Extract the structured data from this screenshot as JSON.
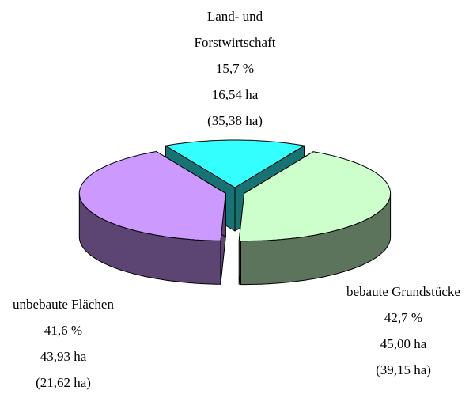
{
  "chart_data": {
    "type": "pie",
    "categories": [
      "Land- und Forstwirtschaft",
      "bebaute Grundstücke",
      "unbebaute Flächen"
    ],
    "values": [
      15.7,
      42.7,
      41.6
    ],
    "value_labels": [
      "15,7 %",
      "42,7 %",
      "41,6 %"
    ],
    "area_labels": [
      "16,54 ha",
      "45,00 ha",
      "43,93 ha"
    ],
    "previous_area_labels": [
      "(35,38 ha)",
      "(39,15 ha)",
      "(21,62 ha)"
    ],
    "colors": [
      "#33ffff",
      "#ccffcc",
      "#cc99ff"
    ],
    "three_d": true
  }
}
